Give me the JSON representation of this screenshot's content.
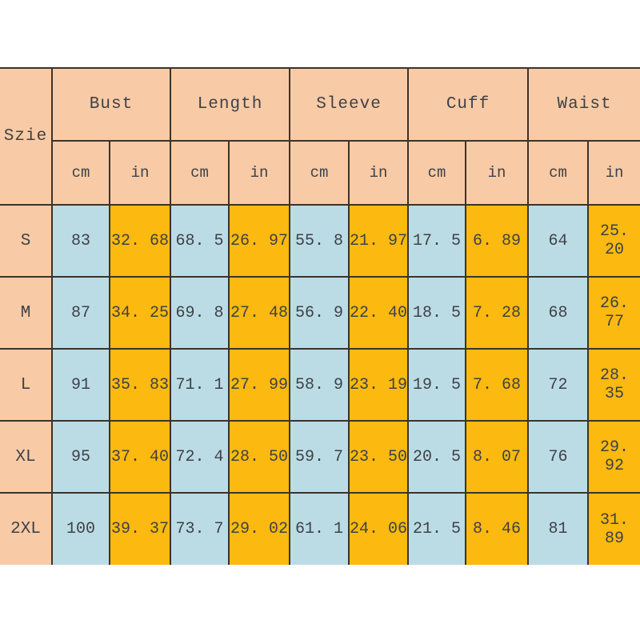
{
  "chart_data": {
    "type": "table",
    "title": "",
    "corner_label": "Szie",
    "column_groups": [
      "Bust",
      "Length",
      "Sleeve",
      "Cuff",
      "Waist"
    ],
    "unit_labels": [
      "cm",
      "in"
    ],
    "rows": [
      {
        "size": "S",
        "values": [
          "83",
          "32. 68",
          "68. 5",
          "26. 97",
          "55. 8",
          "21. 97",
          "17. 5",
          "6. 89",
          "64",
          "25. 20"
        ]
      },
      {
        "size": "M",
        "values": [
          "87",
          "34. 25",
          "69. 8",
          "27. 48",
          "56. 9",
          "22. 40",
          "18. 5",
          "7. 28",
          "68",
          "26. 77"
        ]
      },
      {
        "size": "L",
        "values": [
          "91",
          "35. 83",
          "71. 1",
          "27. 99",
          "58. 9",
          "23. 19",
          "19. 5",
          "7. 68",
          "72",
          "28. 35"
        ]
      },
      {
        "size": "XL",
        "values": [
          "95",
          "37. 40",
          "72. 4",
          "28. 50",
          "59. 7",
          "23. 50",
          "20. 5",
          "8. 07",
          "76",
          "29. 92"
        ]
      },
      {
        "size": "2XL",
        "values": [
          "100",
          "39. 37",
          "73. 7",
          "29. 02",
          "61. 1",
          "24. 06",
          "21. 5",
          "8. 46",
          "81",
          "31. 89"
        ]
      }
    ],
    "layout": {
      "grid": true,
      "header_rows": 2,
      "units_per_group": 2
    },
    "colors": {
      "header_bg": "#f8cba6",
      "size_column_bg": "#f8cba6",
      "cm_column_bg": "#bcdce5",
      "in_column_bg": "#fcb90f",
      "grid_border": "#3b332a",
      "text": "#3e4148",
      "page_bg": "#ffffff"
    }
  }
}
